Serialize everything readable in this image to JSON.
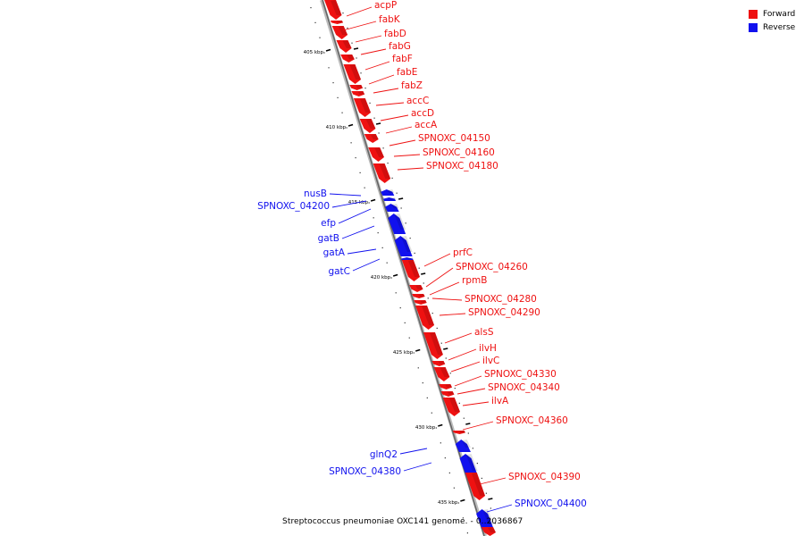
{
  "colors": {
    "forward": "#ee1111",
    "reverse": "#1111ee",
    "backbone": "#9a9a9a"
  },
  "legend": [
    {
      "label": "Forward",
      "color": "#ee1111"
    },
    {
      "label": "Reverse",
      "color": "#1111ee"
    }
  ],
  "caption": "Streptococcus pneumoniae OXC141 genome. - 0..2036867",
  "ticks": [
    "405 kbp",
    "410 kbp",
    "415 kbp",
    "420 kbp",
    "425 kbp",
    "430 kbp",
    "435 kbp"
  ],
  "genes": [
    {
      "name": "acpP",
      "strand": "forward"
    },
    {
      "name": "fabK",
      "strand": "forward"
    },
    {
      "name": "fabD",
      "strand": "forward"
    },
    {
      "name": "fabG",
      "strand": "forward"
    },
    {
      "name": "fabF",
      "strand": "forward"
    },
    {
      "name": "fabE",
      "strand": "forward"
    },
    {
      "name": "fabZ",
      "strand": "forward"
    },
    {
      "name": "accC",
      "strand": "forward"
    },
    {
      "name": "accD",
      "strand": "forward"
    },
    {
      "name": "accA",
      "strand": "forward"
    },
    {
      "name": "SPNOXC_04150",
      "strand": "forward"
    },
    {
      "name": "SPNOXC_04160",
      "strand": "forward"
    },
    {
      "name": "SPNOXC_04180",
      "strand": "forward"
    },
    {
      "name": "nusB",
      "strand": "reverse"
    },
    {
      "name": "SPNOXC_04200",
      "strand": "reverse"
    },
    {
      "name": "efp",
      "strand": "reverse"
    },
    {
      "name": "gatB",
      "strand": "reverse"
    },
    {
      "name": "gatA",
      "strand": "reverse"
    },
    {
      "name": "gatC",
      "strand": "reverse"
    },
    {
      "name": "prfC",
      "strand": "forward"
    },
    {
      "name": "SPNOXC_04260",
      "strand": "forward"
    },
    {
      "name": "rpmB",
      "strand": "forward"
    },
    {
      "name": "SPNOXC_04280",
      "strand": "forward"
    },
    {
      "name": "SPNOXC_04290",
      "strand": "forward"
    },
    {
      "name": "alsS",
      "strand": "forward"
    },
    {
      "name": "ilvH",
      "strand": "forward"
    },
    {
      "name": "ilvC",
      "strand": "forward"
    },
    {
      "name": "SPNOXC_04330",
      "strand": "forward"
    },
    {
      "name": "SPNOXC_04340",
      "strand": "forward"
    },
    {
      "name": "ilvA",
      "strand": "forward"
    },
    {
      "name": "SPNOXC_04360",
      "strand": "forward"
    },
    {
      "name": "glnQ2",
      "strand": "reverse"
    },
    {
      "name": "SPNOXC_04380",
      "strand": "reverse"
    },
    {
      "name": "SPNOXC_04390",
      "strand": "forward"
    },
    {
      "name": "SPNOXC_04400",
      "strand": "reverse"
    }
  ]
}
